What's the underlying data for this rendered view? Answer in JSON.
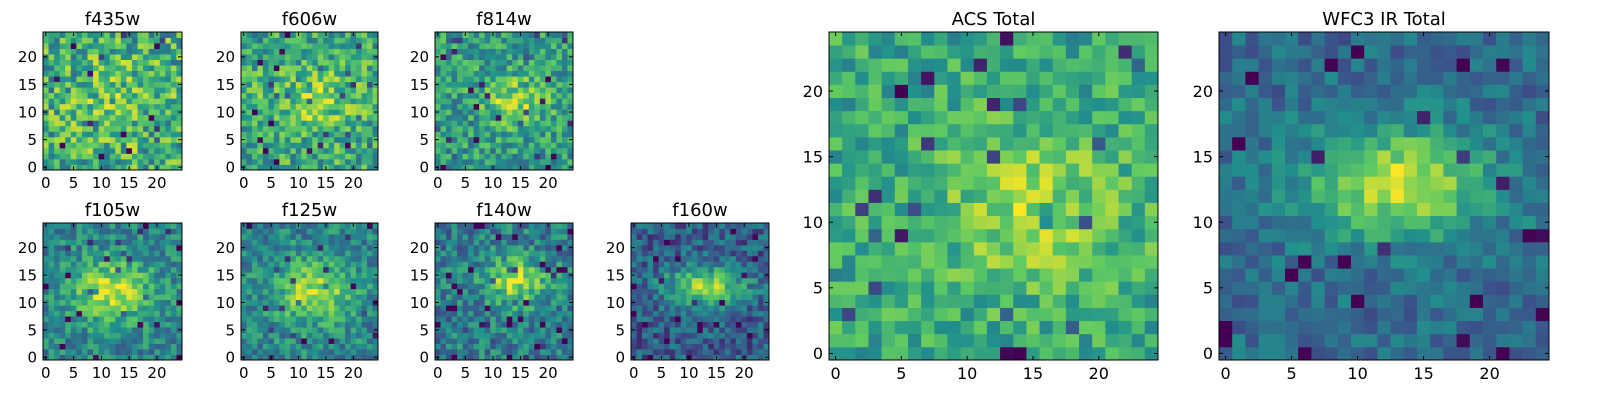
{
  "figure": {
    "colormap": "viridis",
    "colormap_stops": [
      "#440154",
      "#3b528b",
      "#21918c",
      "#5ec962",
      "#fde725"
    ]
  },
  "chart_data": [
    {
      "type": "heatmap",
      "title": "f435w",
      "grid": [
        25,
        25
      ],
      "xticks": [
        0,
        5,
        10,
        15,
        20
      ],
      "yticks": [
        0,
        5,
        10,
        15,
        20
      ],
      "xlim": [
        -0.5,
        24.5
      ],
      "ylim": [
        -0.5,
        24.5
      ],
      "center": [
        13,
        12
      ],
      "sigma": [
        6,
        6
      ],
      "peak": 0.1,
      "base": 0.62,
      "noise": 0.28,
      "seed": 11
    },
    {
      "type": "heatmap",
      "title": "f606w",
      "grid": [
        25,
        25
      ],
      "xticks": [
        0,
        5,
        10,
        15,
        20
      ],
      "yticks": [
        0,
        5,
        10,
        15,
        20
      ],
      "xlim": [
        -0.5,
        24.5
      ],
      "ylim": [
        -0.5,
        24.5
      ],
      "center": [
        13,
        12
      ],
      "sigma": [
        6,
        4
      ],
      "peak": 0.2,
      "base": 0.6,
      "noise": 0.24,
      "seed": 23
    },
    {
      "type": "heatmap",
      "title": "f814w",
      "grid": [
        25,
        25
      ],
      "xticks": [
        0,
        5,
        10,
        15,
        20
      ],
      "yticks": [
        0,
        5,
        10,
        15,
        20
      ],
      "xlim": [
        -0.5,
        24.5
      ],
      "ylim": [
        -0.5,
        24.5
      ],
      "center": [
        14,
        12
      ],
      "sigma": [
        4,
        3
      ],
      "peak": 0.3,
      "base": 0.55,
      "noise": 0.22,
      "seed": 37
    },
    {
      "type": "heatmap",
      "title": "f105w",
      "grid": [
        25,
        25
      ],
      "xticks": [
        0,
        5,
        10,
        15,
        20
      ],
      "yticks": [
        0,
        5,
        10,
        15,
        20
      ],
      "xlim": [
        -0.5,
        24.5
      ],
      "ylim": [
        -0.5,
        24.5
      ],
      "center": [
        12,
        12
      ],
      "sigma": [
        5,
        4
      ],
      "peak": 0.45,
      "base": 0.45,
      "noise": 0.18,
      "seed": 41
    },
    {
      "type": "heatmap",
      "title": "f125w",
      "grid": [
        25,
        25
      ],
      "xticks": [
        0,
        5,
        10,
        15,
        20
      ],
      "yticks": [
        0,
        5,
        10,
        15,
        20
      ],
      "xlim": [
        -0.5,
        24.5
      ],
      "ylim": [
        -0.5,
        24.5
      ],
      "center": [
        13,
        12
      ],
      "sigma": [
        5,
        4
      ],
      "peak": 0.42,
      "base": 0.45,
      "noise": 0.18,
      "seed": 53
    },
    {
      "type": "heatmap",
      "title": "f140w",
      "grid": [
        25,
        25
      ],
      "xticks": [
        0,
        5,
        10,
        15,
        20
      ],
      "yticks": [
        0,
        5,
        10,
        15,
        20
      ],
      "xlim": [
        -0.5,
        24.5
      ],
      "ylim": [
        -0.5,
        24.5
      ],
      "center": [
        14,
        14
      ],
      "sigma": [
        4,
        3
      ],
      "peak": 0.45,
      "base": 0.42,
      "noise": 0.2,
      "seed": 67
    },
    {
      "type": "heatmap",
      "title": "f160w",
      "grid": [
        25,
        25
      ],
      "xticks": [
        0,
        5,
        10,
        15,
        20
      ],
      "yticks": [
        0,
        5,
        10,
        15,
        20
      ],
      "xlim": [
        -0.5,
        24.5
      ],
      "ylim": [
        -0.5,
        24.5
      ],
      "center": [
        13,
        13
      ],
      "sigma": [
        5,
        2.5
      ],
      "peak": 0.55,
      "base": 0.3,
      "noise": 0.18,
      "seed": 79
    },
    {
      "type": "heatmap",
      "title": "ACS Total",
      "grid": [
        25,
        25
      ],
      "xticks": [
        0,
        5,
        10,
        15,
        20
      ],
      "yticks": [
        0,
        5,
        10,
        15,
        20
      ],
      "xlim": [
        -0.5,
        24.5
      ],
      "ylim": [
        -0.5,
        24.5
      ],
      "center": [
        15,
        11
      ],
      "sigma": [
        5,
        4
      ],
      "peak": 0.25,
      "base": 0.6,
      "noise": 0.18,
      "seed": 97
    },
    {
      "type": "heatmap",
      "title": "WFC3 IR Total",
      "grid": [
        25,
        25
      ],
      "xticks": [
        0,
        5,
        10,
        15,
        20
      ],
      "yticks": [
        0,
        5,
        10,
        15,
        20
      ],
      "xlim": [
        -0.5,
        24.5
      ],
      "ylim": [
        -0.5,
        24.5
      ],
      "center": [
        13,
        13
      ],
      "sigma": [
        5,
        3
      ],
      "peak": 0.55,
      "base": 0.35,
      "noise": 0.13,
      "seed": 101
    }
  ]
}
